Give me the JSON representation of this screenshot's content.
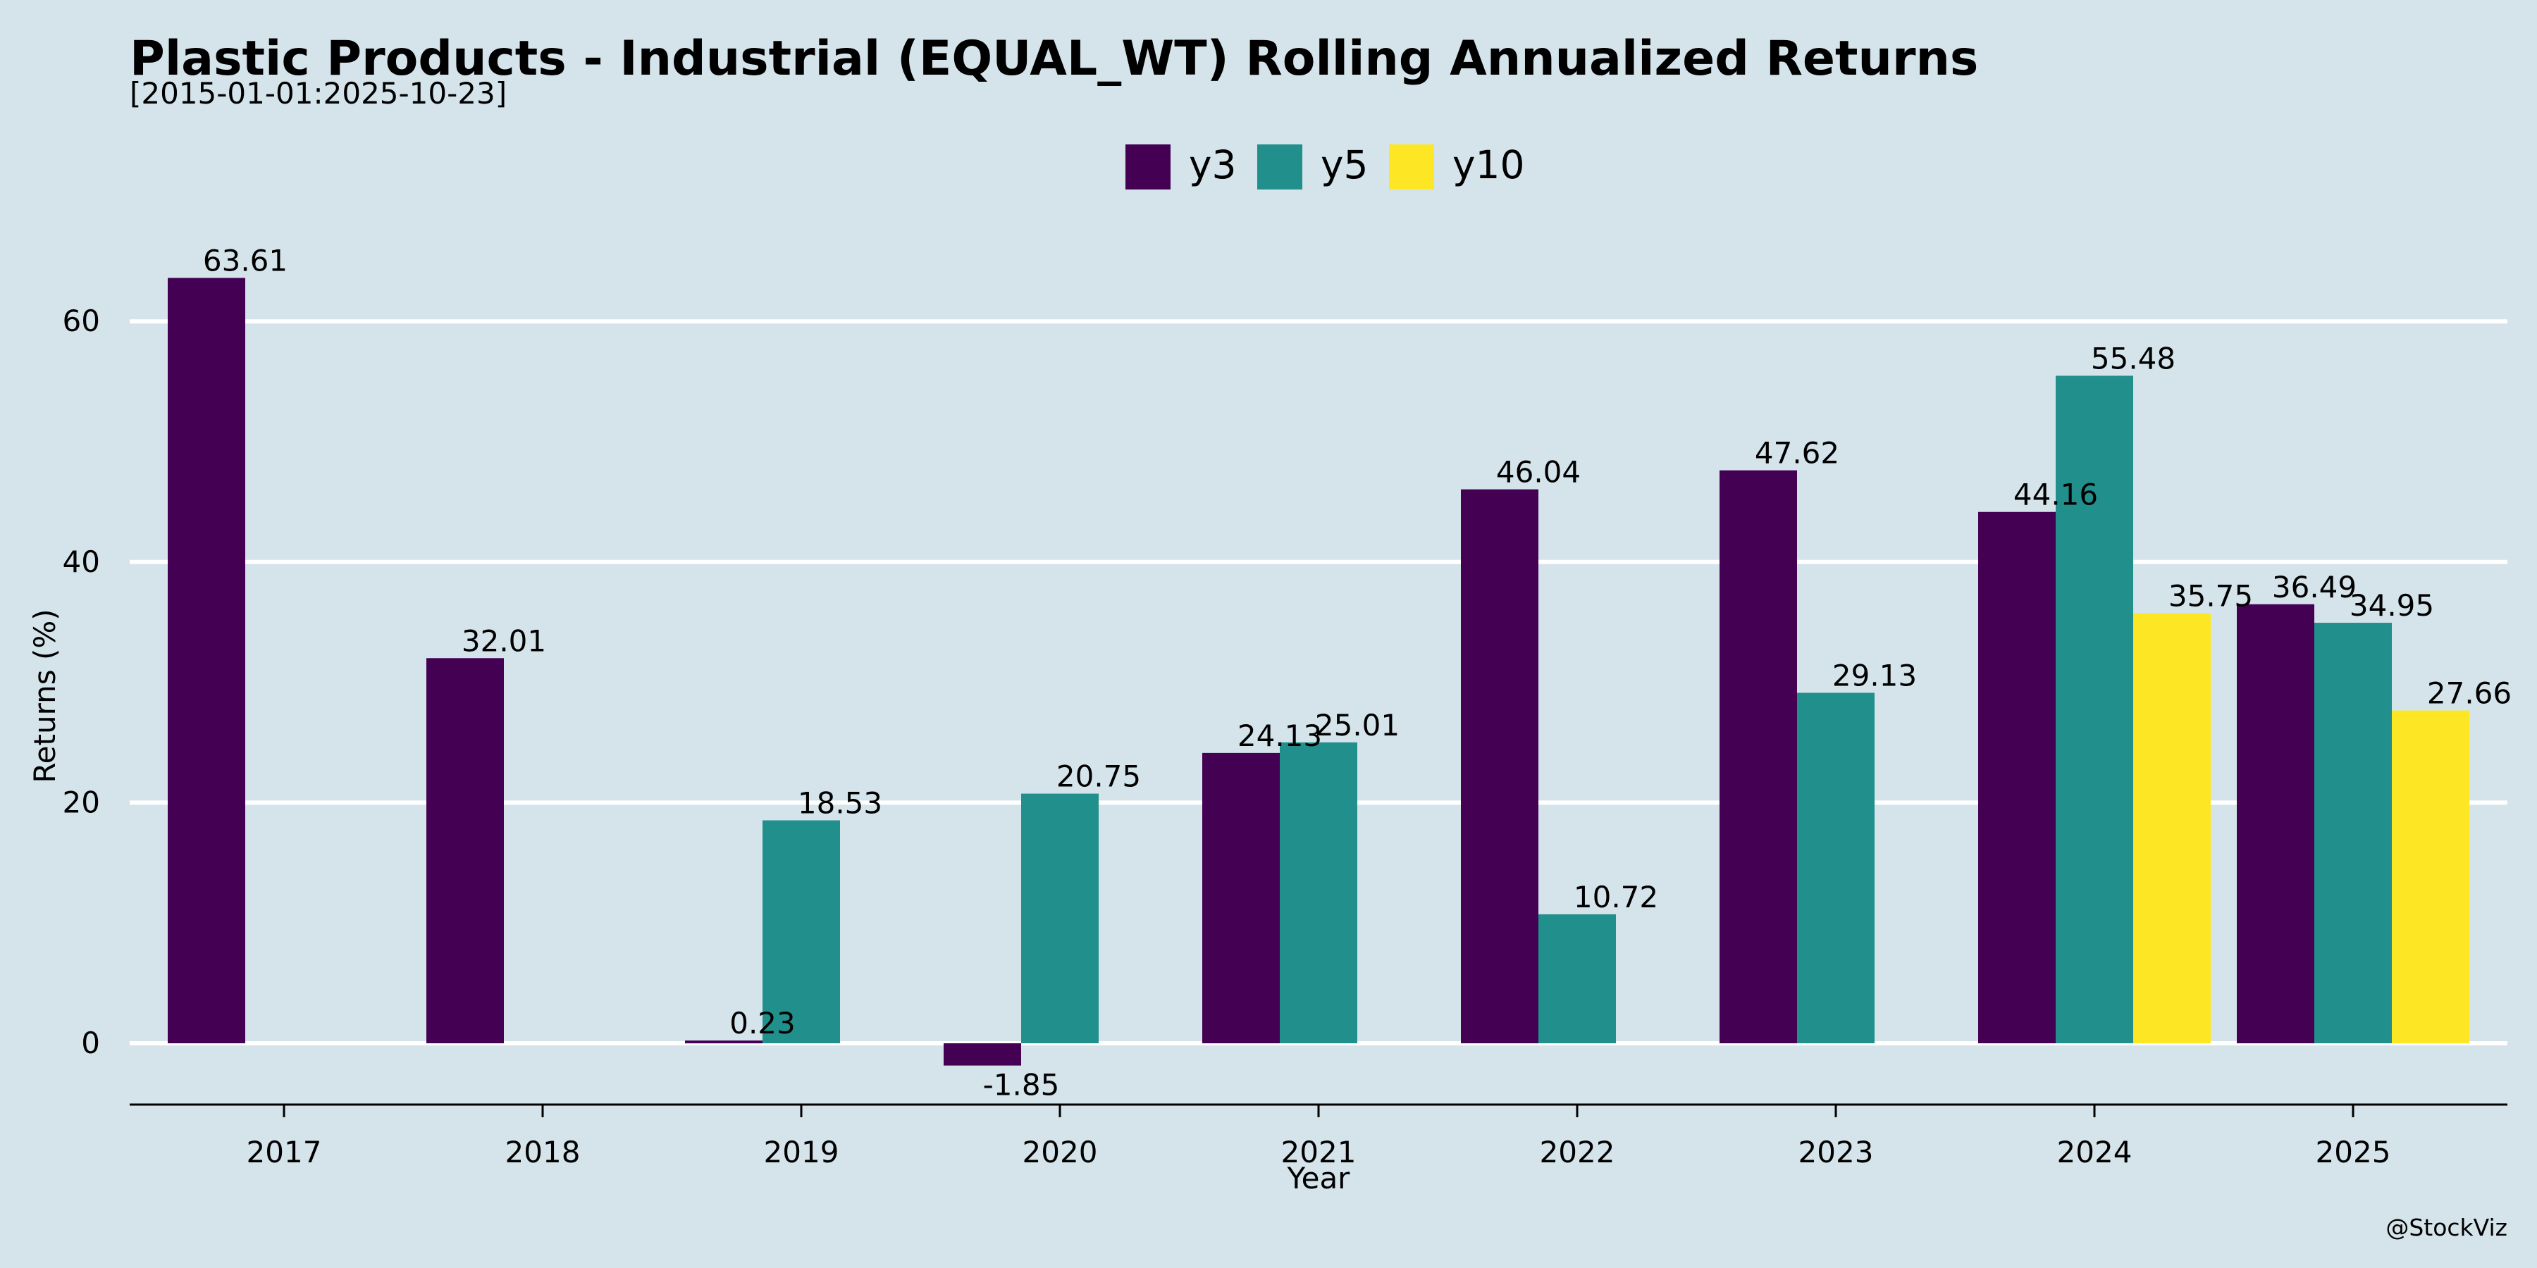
{
  "title": "Plastic Products - Industrial (EQUAL_WT) Rolling Annualized Returns",
  "subtitle": "[2015-01-01:2025-10-23]",
  "watermark": "@StockViz",
  "colors": {
    "background": "#d5e4eb",
    "grid": "#ffffff",
    "y3": "#440154",
    "y5": "#21908d",
    "y10": "#fde725"
  },
  "chart_data": {
    "type": "bar",
    "xlabel": "Year",
    "ylabel": "Returns (%)",
    "ylim": [
      -5,
      70
    ],
    "yticks": [
      0,
      20,
      40,
      60
    ],
    "grid": "horizontal",
    "legend_position": "top-center",
    "categories": [
      "2017",
      "2018",
      "2019",
      "2020",
      "2021",
      "2022",
      "2023",
      "2024",
      "2025"
    ],
    "series": [
      {
        "name": "y3",
        "color": "#440154",
        "values": [
          63.61,
          32.01,
          0.23,
          -1.85,
          24.13,
          46.04,
          47.62,
          44.16,
          36.49
        ]
      },
      {
        "name": "y5",
        "color": "#21908d",
        "values": [
          null,
          null,
          18.53,
          20.75,
          25.01,
          10.72,
          29.13,
          55.48,
          34.95
        ]
      },
      {
        "name": "y10",
        "color": "#fde725",
        "values": [
          null,
          null,
          null,
          null,
          null,
          null,
          null,
          35.75,
          27.66
        ]
      }
    ],
    "data_labels": [
      {
        "series": "y3",
        "index": 0,
        "text": "63.61"
      },
      {
        "series": "y3",
        "index": 1,
        "text": "32.01"
      },
      {
        "series": "y3",
        "index": 2,
        "text": "0.23"
      },
      {
        "series": "y3",
        "index": 3,
        "text": "-1.85"
      },
      {
        "series": "y3",
        "index": 4,
        "text": "24.13"
      },
      {
        "series": "y3",
        "index": 5,
        "text": "46.04"
      },
      {
        "series": "y3",
        "index": 6,
        "text": "47.62"
      },
      {
        "series": "y3",
        "index": 7,
        "text": "44.16"
      },
      {
        "series": "y3",
        "index": 8,
        "text": "36.49"
      },
      {
        "series": "y5",
        "index": 2,
        "text": "18.53"
      },
      {
        "series": "y5",
        "index": 3,
        "text": "20.75"
      },
      {
        "series": "y5",
        "index": 4,
        "text": "25.01"
      },
      {
        "series": "y5",
        "index": 5,
        "text": "10.72"
      },
      {
        "series": "y5",
        "index": 6,
        "text": "29.13"
      },
      {
        "series": "y5",
        "index": 7,
        "text": "55.48"
      },
      {
        "series": "y5",
        "index": 8,
        "text": "34.95"
      },
      {
        "series": "y10",
        "index": 7,
        "text": "35.75"
      },
      {
        "series": "y10",
        "index": 8,
        "text": "27.66"
      }
    ]
  }
}
